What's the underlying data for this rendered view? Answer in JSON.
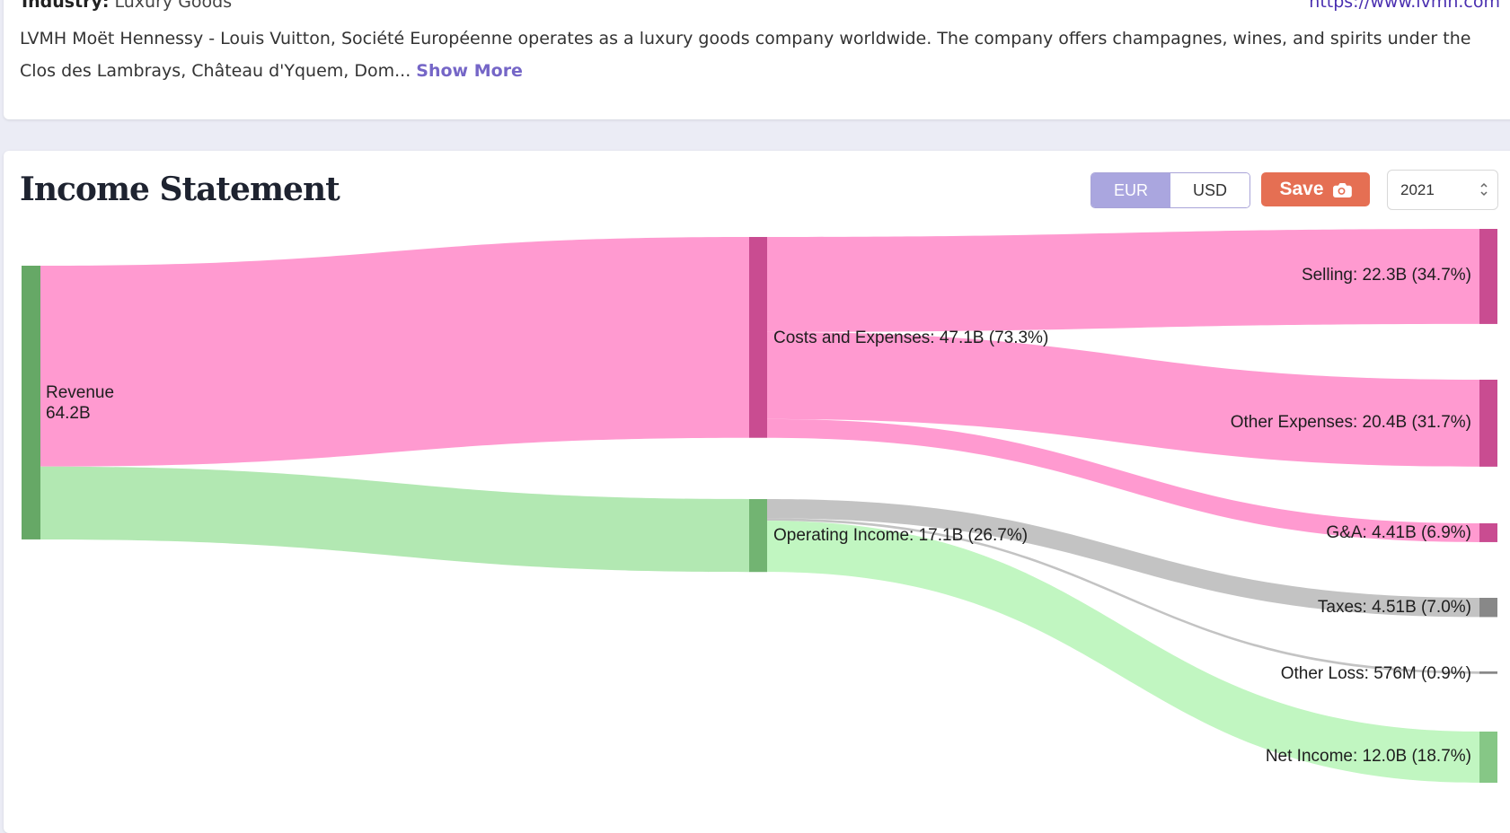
{
  "profile": {
    "industry_label": "Industry:",
    "industry_value": "Luxury Goods",
    "website": "https://www.lvmh.com",
    "description": "LVMH Moët Hennessy - Louis Vuitton, Société Européenne operates as a luxury goods company worldwide. The company offers champagnes, wines, and spirits under the Clos des Lambrays, Château d'Yquem, Dom...",
    "show_more": "Show More"
  },
  "income_statement": {
    "title": "Income Statement",
    "currency": {
      "selected": "EUR",
      "options": [
        "EUR",
        "USD"
      ]
    },
    "save_label": "Save",
    "year": "2021"
  },
  "chart_data": {
    "type": "sankey",
    "nodes": [
      {
        "id": "revenue",
        "label_line_1": "Revenue",
        "label_line_2": "64.2B",
        "value": 64.2,
        "color": "#66a866"
      },
      {
        "id": "costs",
        "label": "Costs and Expenses: 47.1B (73.3%)",
        "value": 47.1,
        "percent": 73.3,
        "color": "#c94c91"
      },
      {
        "id": "operating_income",
        "label": "Operating Income: 17.1B (26.7%)",
        "value": 17.1,
        "percent": 26.7,
        "color": "#72b472"
      },
      {
        "id": "selling",
        "label": "Selling: 22.3B (34.7%)",
        "value": 22.3,
        "percent": 34.7,
        "color": "#c94c91"
      },
      {
        "id": "other_expenses",
        "label": "Other Expenses: 20.4B (31.7%)",
        "value": 20.4,
        "percent": 31.7,
        "color": "#c94c91"
      },
      {
        "id": "ga",
        "label": "G&A: 4.41B (6.9%)",
        "value": 4.41,
        "percent": 6.9,
        "color": "#c94c91"
      },
      {
        "id": "taxes",
        "label": "Taxes: 4.51B (7.0%)",
        "value": 4.51,
        "percent": 7.0,
        "color": "#888888"
      },
      {
        "id": "other_loss",
        "label": "Other Loss: 576M (0.9%)",
        "value": 0.576,
        "percent": 0.9,
        "color": "#888888"
      },
      {
        "id": "net_income",
        "label": "Net Income: 12.0B (18.7%)",
        "value": 12.0,
        "percent": 18.7,
        "color": "#86c786"
      }
    ],
    "links": [
      {
        "source": "revenue",
        "target": "costs",
        "value": 47.1,
        "color": "#ff9ad0"
      },
      {
        "source": "revenue",
        "target": "operating_income",
        "value": 17.1,
        "color": "#b2e8b2"
      },
      {
        "source": "costs",
        "target": "selling",
        "value": 22.3,
        "color": "#ff9ad0"
      },
      {
        "source": "costs",
        "target": "other_expenses",
        "value": 20.4,
        "color": "#ff9ad0"
      },
      {
        "source": "costs",
        "target": "ga",
        "value": 4.41,
        "color": "#ff9ad0"
      },
      {
        "source": "operating_income",
        "target": "taxes",
        "value": 4.51,
        "color": "#c3c3c3"
      },
      {
        "source": "operating_income",
        "target": "other_loss",
        "value": 0.576,
        "color": "#c3c3c3"
      },
      {
        "source": "operating_income",
        "target": "net_income",
        "value": 12.0,
        "color": "#c1f6c1"
      }
    ]
  }
}
